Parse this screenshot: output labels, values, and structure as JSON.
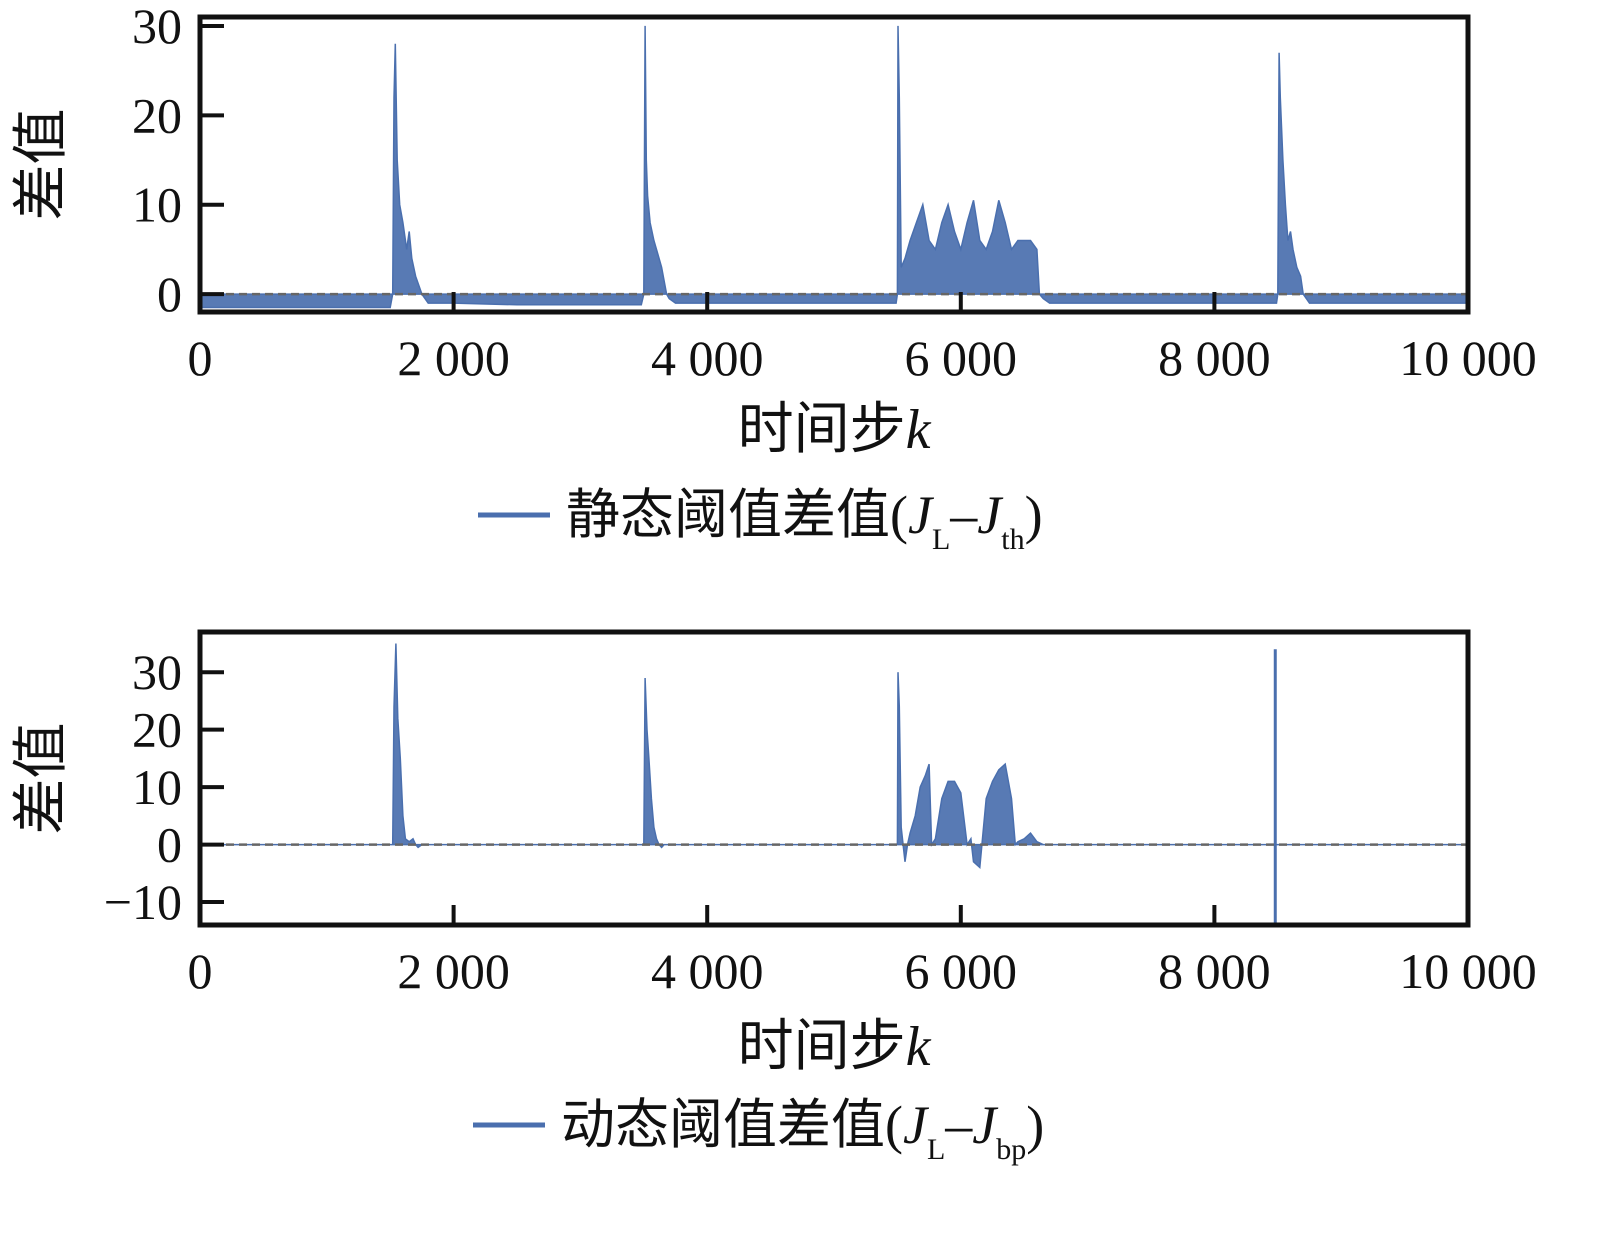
{
  "chart_data": [
    {
      "type": "area",
      "xlabel_text": "时间步",
      "xlabel_var": "k",
      "ylabel": "差值",
      "xlim": [
        0,
        10000
      ],
      "ylim": [
        -2,
        31
      ],
      "xticks": [
        0,
        2000,
        4000,
        6000,
        8000,
        10000
      ],
      "xtick_labels": [
        "0",
        "2 000",
        "4 000",
        "6 000",
        "8 000",
        "10 000"
      ],
      "yticks": [
        0,
        10,
        20,
        30
      ],
      "ytick_labels": [
        "0",
        "10",
        "20",
        "30"
      ],
      "baseline": 0,
      "color": "#4a6fae",
      "legend": {
        "text": "静态阈值差值(",
        "sym1": "J",
        "sub1": "L",
        "dash": "–",
        "sym2": "J",
        "sub2": "th",
        "close": ")"
      },
      "series": [
        {
          "x": [
            0,
            1500,
            1520,
            1530,
            1540,
            1555,
            1575,
            1600,
            1630,
            1650,
            1670,
            1700,
            1750,
            1800,
            1900,
            2000,
            2500,
            3000,
            3480,
            3500,
            3510,
            3520,
            3530,
            3550,
            3580,
            3600,
            3640,
            3680,
            3700,
            3750,
            3900,
            4000,
            4500,
            5000,
            5490,
            5500,
            5505,
            5515,
            5530,
            5560,
            5600,
            5650,
            5700,
            5750,
            5800,
            5850,
            5900,
            5950,
            6000,
            6050,
            6100,
            6150,
            6200,
            6250,
            6300,
            6350,
            6400,
            6450,
            6500,
            6550,
            6600,
            6620,
            6650,
            6700,
            6800,
            7000,
            7500,
            8000,
            8490,
            8500,
            8510,
            8520,
            8540,
            8560,
            8580,
            8600,
            8620,
            8650,
            8680,
            8700,
            8750,
            8800,
            9000,
            9500,
            10000
          ],
          "y": [
            -1.5,
            -1.5,
            0,
            22,
            28,
            15,
            10,
            8,
            5,
            7,
            4,
            2,
            0,
            -1,
            -1,
            -1,
            -1.2,
            -1.2,
            -1.2,
            0,
            30,
            15,
            11,
            8,
            6,
            5,
            3,
            0,
            -0.5,
            -1,
            -1,
            -1,
            -1,
            -1,
            -1,
            0,
            30,
            22,
            3,
            4,
            6,
            8,
            10,
            6,
            5,
            8,
            10,
            7,
            5,
            8,
            10.5,
            6,
            5,
            7,
            10.5,
            8,
            5,
            6,
            6,
            6,
            5,
            0,
            -0.5,
            -1,
            -1,
            -1,
            -1,
            -1,
            -1,
            0,
            27,
            22,
            15,
            10,
            6,
            7,
            5,
            3,
            2,
            0,
            -1,
            -1,
            -1,
            -1,
            -1
          ]
        }
      ]
    },
    {
      "type": "area",
      "xlabel_text": "时间步",
      "xlabel_var": "k",
      "ylabel": "差值",
      "xlim": [
        0,
        10000
      ],
      "ylim": [
        -14,
        37
      ],
      "xticks": [
        0,
        2000,
        4000,
        6000,
        8000,
        10000
      ],
      "xtick_labels": [
        "0",
        "2 000",
        "4 000",
        "6 000",
        "8 000",
        "10 000"
      ],
      "yticks": [
        -10,
        0,
        10,
        20,
        30
      ],
      "ytick_labels": [
        "−10",
        "0",
        "10",
        "20",
        "30"
      ],
      "baseline": 0,
      "color": "#4a6fae",
      "legend": {
        "text": "动态阈值差值(",
        "sym1": "J",
        "sub1": "L",
        "dash": "–",
        "sym2": "J",
        "sub2": "bp",
        "close": ")"
      },
      "series": [
        {
          "x": [
            0,
            1500,
            1520,
            1530,
            1545,
            1560,
            1580,
            1600,
            1620,
            1650,
            1680,
            1700,
            1720,
            1750,
            2000,
            3480,
            3500,
            3510,
            3525,
            3540,
            3560,
            3580,
            3600,
            3620,
            3640,
            3660,
            3700,
            5480,
            5500,
            5505,
            5515,
            5530,
            5560,
            5580,
            5600,
            5640,
            5680,
            5720,
            5750,
            5770,
            5800,
            5850,
            5900,
            5950,
            6000,
            6050,
            6080,
            6100,
            6150,
            6200,
            6250,
            6300,
            6350,
            6400,
            6430,
            6450,
            6500,
            6550,
            6600,
            6650,
            10000
          ],
          "y": [
            0,
            0,
            0,
            24,
            35,
            22,
            15,
            5,
            1,
            0.5,
            1,
            0,
            -0.5,
            0,
            0,
            0,
            0,
            29,
            20,
            15,
            8,
            3,
            1,
            0,
            -0.5,
            0,
            0,
            0,
            0,
            30,
            24,
            3,
            -3,
            0,
            2,
            5,
            10,
            12,
            14,
            0,
            1,
            8,
            11,
            11,
            9,
            0,
            1,
            -3,
            -4,
            8,
            11,
            13,
            14,
            8,
            0,
            0.5,
            1,
            2,
            0.5,
            0,
            0
          ]
        }
      ],
      "spike": {
        "x": 8480,
        "y_min": -14,
        "y_max": 34
      }
    }
  ]
}
